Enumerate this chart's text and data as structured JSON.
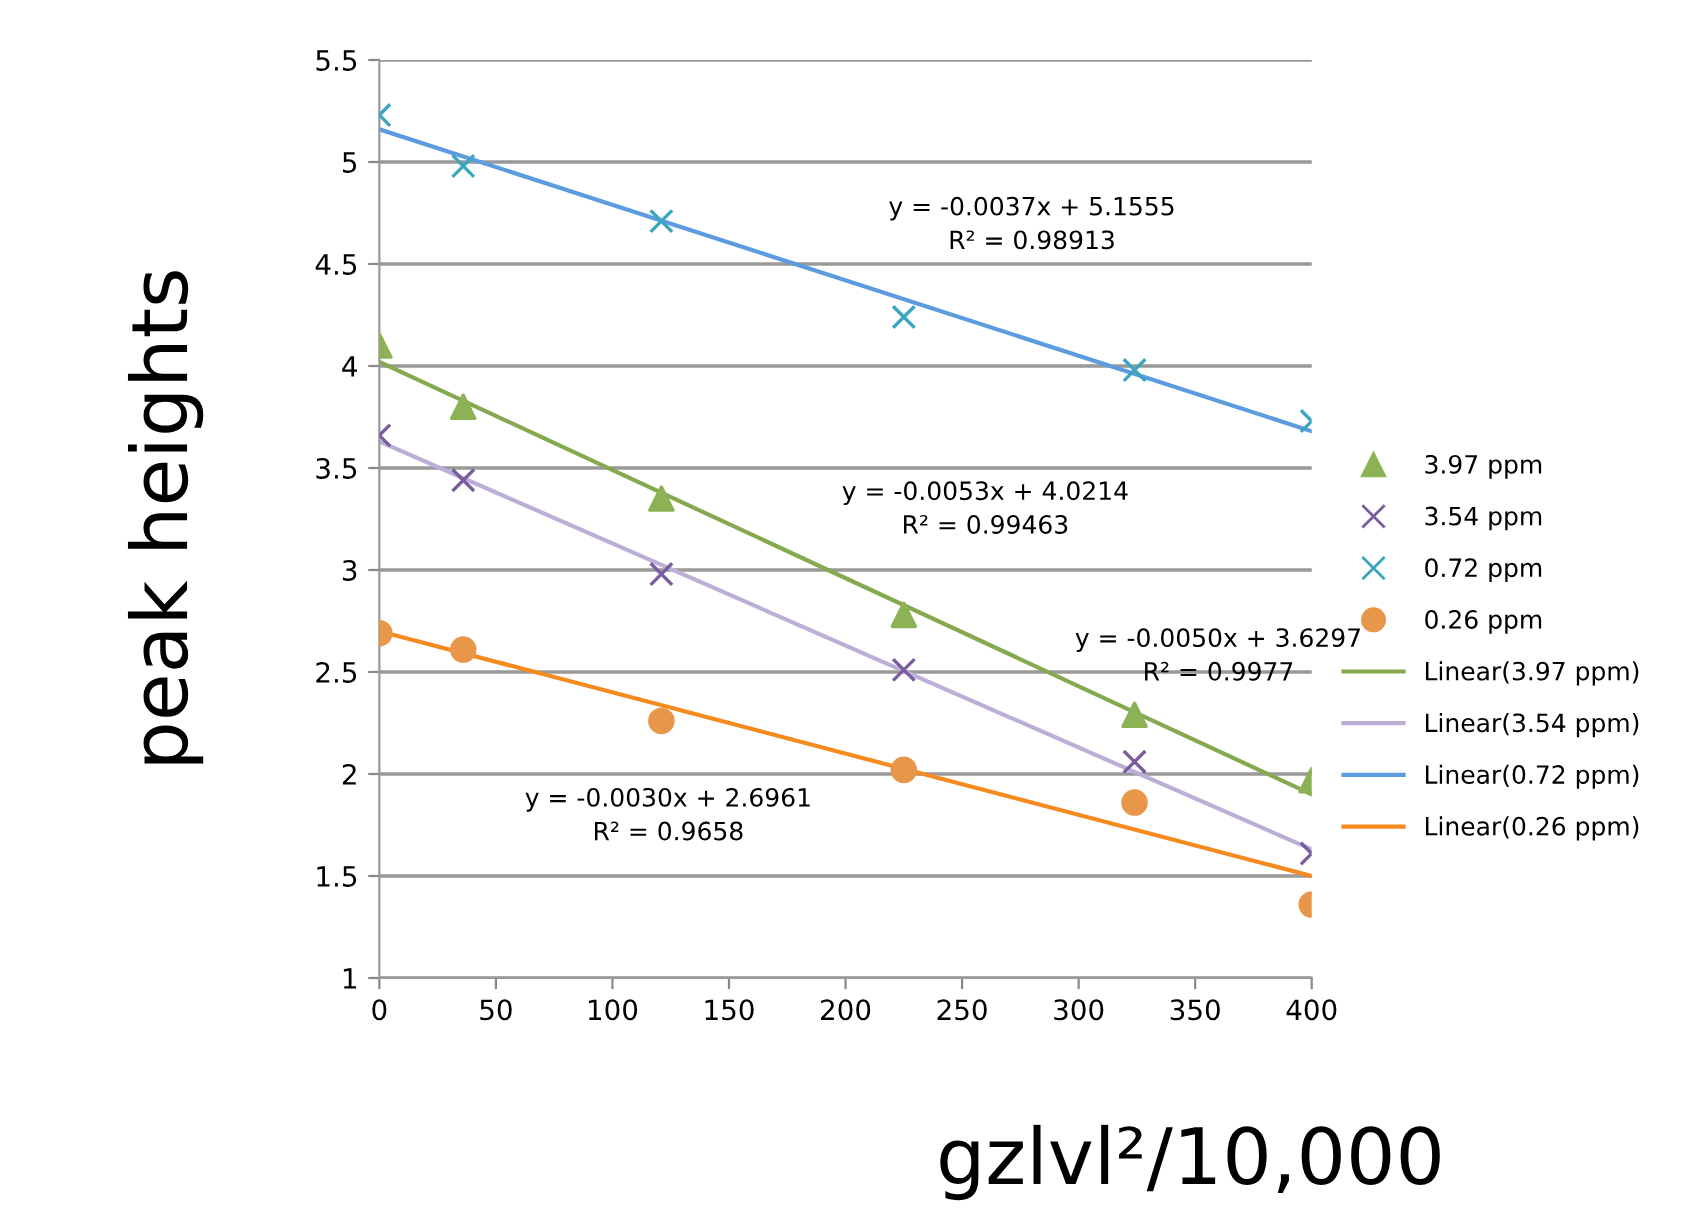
{
  "chart_data": {
    "type": "scatter",
    "xlabel": "gzlvl²/10,000",
    "ylabel": "peak heights",
    "xlim": [
      0,
      400
    ],
    "xticks": [
      0,
      50,
      100,
      150,
      200,
      250,
      300,
      350,
      400
    ],
    "ylim": [
      1,
      5.5
    ],
    "yticks": [
      1,
      1.5,
      2,
      2.5,
      3,
      3.5,
      4,
      4.5,
      5,
      5.5
    ],
    "grid": "y",
    "legend": "right",
    "series": [
      {
        "name": "3.97 ppm",
        "marker": "triangle",
        "color": "#8db255",
        "x": [
          0,
          36,
          121,
          225,
          324,
          400
        ],
        "values": [
          4.1,
          3.8,
          3.35,
          2.78,
          2.29,
          1.97
        ]
      },
      {
        "name": "3.54 ppm",
        "marker": "cross",
        "color": "#7a5d9e",
        "x": [
          0,
          36,
          121,
          225,
          324,
          400
        ],
        "values": [
          3.66,
          3.44,
          2.98,
          2.51,
          2.06,
          1.61
        ]
      },
      {
        "name": "0.72 ppm",
        "marker": "cross",
        "color": "#3aa6c0",
        "x": [
          0,
          36,
          121,
          225,
          324,
          400
        ],
        "values": [
          5.23,
          4.98,
          4.71,
          4.24,
          3.98,
          3.73
        ]
      },
      {
        "name": "0.26 ppm",
        "marker": "circle",
        "color": "#e8974a",
        "x": [
          0,
          36,
          121,
          225,
          324,
          400
        ],
        "values": [
          2.69,
          2.61,
          2.26,
          2.02,
          1.86,
          1.36
        ]
      },
      {
        "name": "Linear(3.97 ppm)",
        "type": "line",
        "marker": "none",
        "line_style": "solid",
        "color": "#86a84f",
        "x": [
          0,
          400
        ],
        "values": [
          4.02,
          1.9
        ]
      },
      {
        "name": "Linear(3.54 ppm)",
        "type": "line",
        "marker": "none",
        "line_style": "solid",
        "color": "#bcaed6",
        "x": [
          0,
          400
        ],
        "values": [
          3.63,
          1.63
        ]
      },
      {
        "name": "Linear(0.72 ppm)",
        "type": "line",
        "marker": "none",
        "line_style": "solid",
        "color": "#5b9be0",
        "x": [
          0,
          400
        ],
        "values": [
          5.16,
          3.68
        ]
      },
      {
        "name": "Linear(0.26 ppm)",
        "type": "line",
        "marker": "none",
        "line_style": "solid",
        "color": "#f58a1f",
        "x": [
          0,
          400
        ],
        "values": [
          2.7,
          1.5
        ]
      }
    ],
    "annotations": [
      "y = -0.0037x + 5.1555\nR² = 0.98913",
      "y = -0.0053x + 4.0214\nR² = 0.99463",
      "y = -0.0050x + 3.6297\nR² = 0.9977",
      "y = -0.0030x + 2.6961\nR² = 0.9658"
    ]
  }
}
